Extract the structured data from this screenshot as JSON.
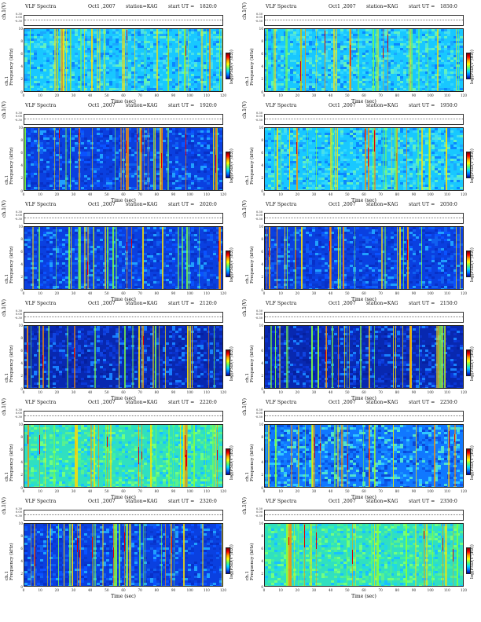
{
  "chart_data": {
    "type": "heatmap",
    "header": {
      "title": "VLF Spectra",
      "date": "Oct1 ,2007",
      "station": "station=KAG",
      "start_prefix": "start  UT  ="
    },
    "ch1_label": "ch.1(V)",
    "ch1_ticks": [
      "0.30",
      "0.00",
      "-0.30"
    ],
    "ylabel_top": "ch.1",
    "ylabel": "Frequency  (kHz)",
    "yticks": [
      "0",
      "2",
      "4",
      "6",
      "8",
      "10"
    ],
    "xticks": [
      "0",
      "10",
      "20",
      "30",
      "40",
      "50",
      "60",
      "70",
      "80",
      "90",
      "100",
      "110",
      "120"
    ],
    "xlabel": "Time  (sec)",
    "colorbar_label": "log(PSD(V²/Hz))",
    "xlim": [
      0,
      120
    ],
    "ylim": [
      0,
      10
    ],
    "panels": [
      {
        "start_ut": "1820:0",
        "style": "cyan"
      },
      {
        "start_ut": "1850:0",
        "style": "cyan"
      },
      {
        "start_ut": "1920:0",
        "style": "blue"
      },
      {
        "start_ut": "1950:0",
        "style": "cyan"
      },
      {
        "start_ut": "2020:0",
        "style": "blue"
      },
      {
        "start_ut": "2050:0",
        "style": "blue"
      },
      {
        "start_ut": "2120:0",
        "style": "dark"
      },
      {
        "start_ut": "2150:0",
        "style": "dark"
      },
      {
        "start_ut": "2220:0",
        "style": "green"
      },
      {
        "start_ut": "2250:0",
        "style": "mixed"
      },
      {
        "start_ut": "2320:0",
        "style": "blue"
      },
      {
        "start_ut": "2350:0",
        "style": "green"
      }
    ]
  }
}
